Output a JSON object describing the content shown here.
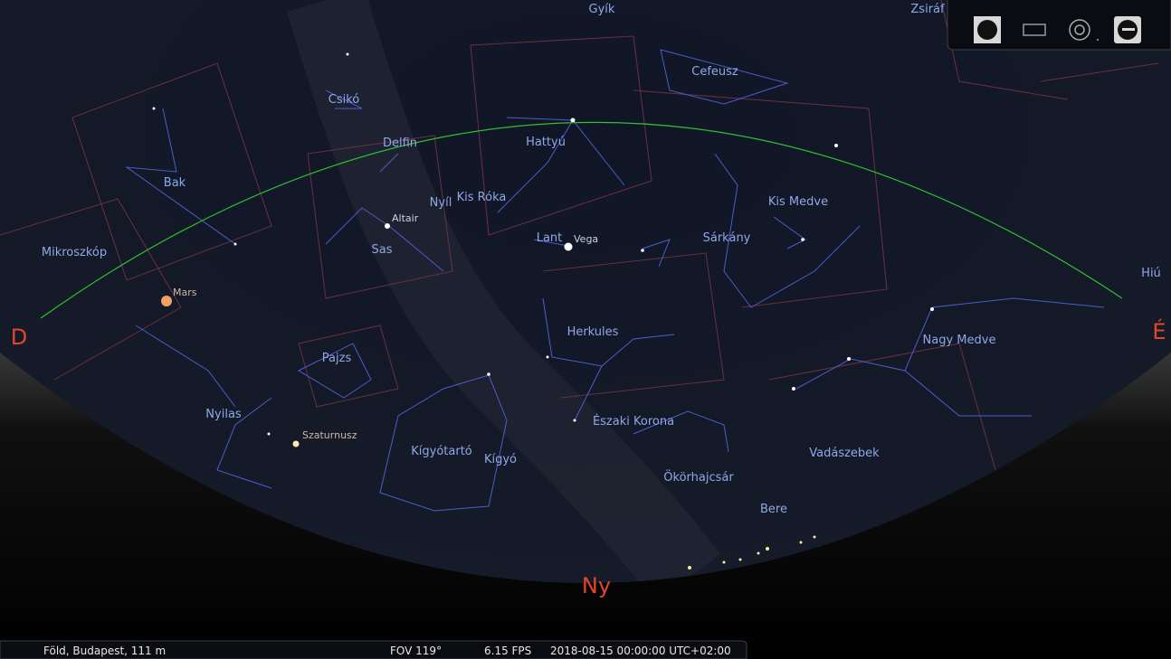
{
  "sky": {
    "constellations": [
      "Gyík",
      "Zsiráf",
      "Cefeusz",
      "Csikó",
      "Delfin",
      "Hattyú",
      "Bak",
      "Nyíl",
      "Kis Róka",
      "Kis Medve",
      "Mikroszkóp",
      "Sas",
      "Lant",
      "Sárkány",
      "Herkules",
      "Nagy Medve",
      "Pajzs",
      "Nyilas",
      "Északi Korona",
      "Kígyótartó",
      "Kígyó",
      "Vadászebek",
      "Ökörhajcsár",
      "Bere",
      "Hiú"
    ],
    "stars": [
      "Altair",
      "Vega"
    ],
    "planets": [
      "Mars",
      "Szaturnusz"
    ],
    "directions": [
      "D",
      "É",
      "Ny"
    ]
  },
  "status_bar": {
    "location": "Föld, Budapest, 111 m",
    "fov": "FOV 119°",
    "fps": "6.15 FPS",
    "datetime": "2018-08-15 00:00:00 UTC+02:00"
  }
}
